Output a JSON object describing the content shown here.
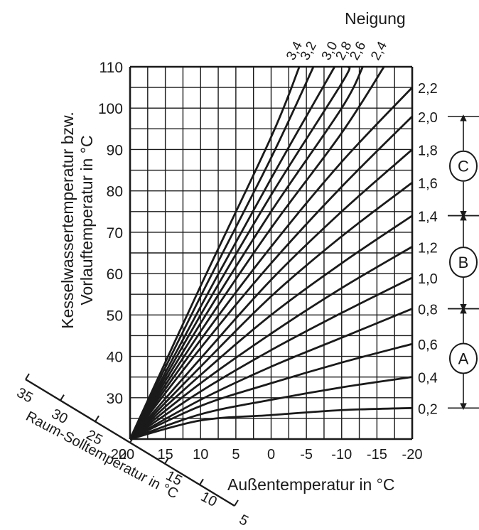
{
  "chart_data": {
    "type": "line",
    "title": "",
    "ylabel_line1": "Kesselwassertemperatur bzw.",
    "ylabel_line2": "Vorlauftemperatur in °C",
    "xlabel": "Außentemperatur in °C",
    "room_axis_label": "Raum-Solltemperatur in °C",
    "slope_axis_label": "Neigung",
    "xlim": [
      20,
      -20
    ],
    "ylim": [
      20,
      110
    ],
    "x_ticks": [
      "20",
      "15",
      "10",
      "5",
      "0",
      "-5",
      "-10",
      "-15",
      "-20"
    ],
    "y_ticks": [
      "30",
      "40",
      "50",
      "60",
      "70",
      "80",
      "90",
      "100",
      "110"
    ],
    "room_ticks": [
      "35",
      "30",
      "25",
      "20",
      "15",
      "10",
      "5"
    ],
    "top_slope_labels": [
      "3,4",
      "3,2",
      "3,0",
      "2,8",
      "2,6",
      "2,4"
    ],
    "right_slope_labels": [
      "2,2",
      "2,0",
      "1,8",
      "1,6",
      "1,4",
      "1,2",
      "1,0",
      "0,8",
      "0,6",
      "0,4",
      "0,2"
    ],
    "series": [
      {
        "name": "0,2",
        "x": [
          20,
          10,
          0,
          -10,
          -20
        ],
        "y": [
          20,
          24.5,
          25.8,
          27.0,
          27.5
        ]
      },
      {
        "name": "0,4",
        "x": [
          20,
          10,
          0,
          -10,
          -20
        ],
        "y": [
          20,
          26,
          29.5,
          32.5,
          35
        ]
      },
      {
        "name": "0,6",
        "x": [
          20,
          10,
          0,
          -10,
          -20
        ],
        "y": [
          20,
          28,
          33.5,
          38.5,
          43
        ]
      },
      {
        "name": "0,8",
        "x": [
          20,
          10,
          0,
          -10,
          -20
        ],
        "y": [
          20,
          29.5,
          37.5,
          44.5,
          51.5
        ]
      },
      {
        "name": "1,0",
        "x": [
          20,
          10,
          0,
          -10,
          -20
        ],
        "y": [
          20,
          31.5,
          41.5,
          50.5,
          59
        ]
      },
      {
        "name": "1,2",
        "x": [
          20,
          10,
          0,
          -10,
          -20
        ],
        "y": [
          20,
          33.5,
          45.5,
          56.5,
          66.5
        ]
      },
      {
        "name": "1,4",
        "x": [
          20,
          10,
          0,
          -10,
          -20
        ],
        "y": [
          20,
          35.5,
          50,
          62.5,
          74
        ]
      },
      {
        "name": "1,6",
        "x": [
          20,
          10,
          0,
          -10,
          -20
        ],
        "y": [
          20,
          37.5,
          54.5,
          69,
          82
        ]
      },
      {
        "name": "1,8",
        "x": [
          20,
          10,
          0,
          -10,
          -20
        ],
        "y": [
          20,
          39.5,
          58.5,
          75,
          90
        ]
      },
      {
        "name": "2,0",
        "x": [
          20,
          10,
          0,
          -10,
          -20
        ],
        "y": [
          20,
          42,
          62.5,
          81,
          98
        ]
      },
      {
        "name": "2,2",
        "x": [
          20,
          10,
          0,
          -10,
          -20
        ],
        "y": [
          20,
          44,
          66.5,
          87,
          105
        ]
      },
      {
        "name": "2,4",
        "x": [
          20,
          10,
          0,
          -10,
          -16
        ],
        "y": [
          20,
          46,
          71,
          94,
          110
        ]
      },
      {
        "name": "2,6",
        "x": [
          20,
          10,
          0,
          -10,
          -13
        ],
        "y": [
          20,
          48,
          75,
          100,
          110
        ]
      },
      {
        "name": "2,8",
        "x": [
          20,
          10,
          0,
          -10,
          -11
        ],
        "y": [
          20,
          50,
          79,
          106,
          110
        ]
      },
      {
        "name": "3,0",
        "x": [
          20,
          10,
          0,
          -9
        ],
        "y": [
          20,
          52,
          83,
          110
        ]
      },
      {
        "name": "3,2",
        "x": [
          20,
          10,
          0,
          -6
        ],
        "y": [
          20,
          54.5,
          88,
          110
        ]
      },
      {
        "name": "3,4",
        "x": [
          20,
          10,
          0,
          -4
        ],
        "y": [
          20,
          57,
          93,
          110
        ]
      }
    ],
    "ranges": [
      {
        "label": "A",
        "from": "0,2",
        "to": "0,8"
      },
      {
        "label": "B",
        "from": "0,8",
        "to": "1,4"
      },
      {
        "label": "C",
        "from": "1,4",
        "to": "2,0"
      }
    ],
    "grid": true
  },
  "colors": {
    "ink": "#1a1a1a",
    "background": "#ffffff"
  }
}
